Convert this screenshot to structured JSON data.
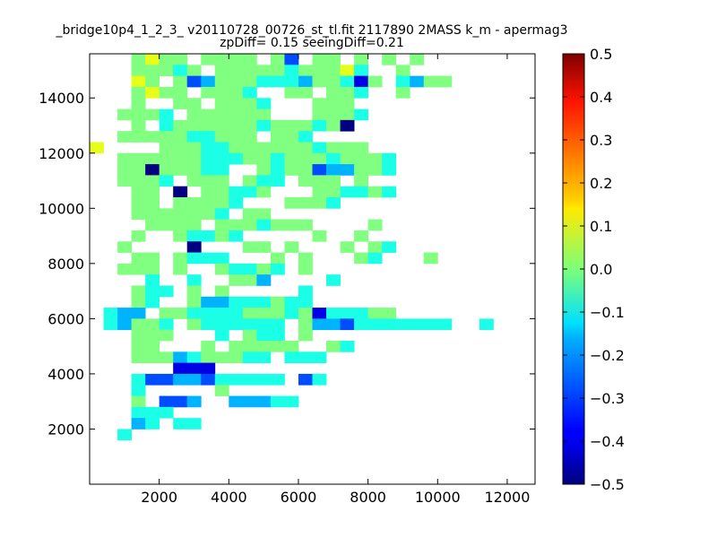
{
  "chart_data": {
    "type": "heatmap",
    "title": "_bridge10p4_1_2_3_ v20110728_00726_st_tl.fit 2117890 2MASS k_m - apermag3",
    "subtitle": "zpDiff= 0.15 seeingDiff=0.21",
    "xlabel": "",
    "ylabel": "",
    "xlim": [
      0,
      12800
    ],
    "ylim": [
      0,
      15600
    ],
    "x_ticks": [
      "2000",
      "4000",
      "6000",
      "8000",
      "10000",
      "12000"
    ],
    "y_ticks": [
      "2000",
      "4000",
      "6000",
      "8000",
      "10000",
      "12000",
      "14000"
    ],
    "colorbar": {
      "colormap": "jet",
      "range": [
        -0.5,
        0.5
      ],
      "ticks": [
        "0.5",
        "0.4",
        "0.3",
        "0.2",
        "0.1",
        "0.0",
        "−0.1",
        "−0.2",
        "−0.3",
        "−0.4",
        "−0.5"
      ]
    },
    "grid": false,
    "bin_size": 400,
    "value_scale": 0.1,
    "value_scale_note": "cell digits are tenths of the colour value",
    "null_symbol": ".",
    "rows_top_to_bottom": [
      "...0100.0000.0-3.00.0.0.0....",
      "...000-10.00000-10001-1..0......",
      "...10.0-3-2000-1-1-1-200-1-40.-1-200..",
      "...0100.000-1..00.00-1..0.....",
      "...0..00.000-1...000....",
      "..000-1.000000...000-1....",
      "...0.-1000000-1000-10-5...",
      "..00000-1-1000.00-1.....",
      "1....000-1-1000000-1000...",
      "..000000-1-1-100-1000-1000-1..",
      "..00-5000-1-1..0-100-3-2-200-1...",
      "..000-1.000.0-1-1.000.0....",
      "...00.-5.00-1-10...00-1-10-1.....",
      "...00.0000-1...000-1....",
      "...000000-1.00....",
      "....0000.000-1000....0....",
      "...0..0-1-10-1.....0..0....",
      "..0....-5...00.0...0.0-1.....",
      "...00.0-1-1-1...0.0...0-1...0....",
      "..000.0..0-1-10-1.0..",
      "....-1..-1..00-2....-1..",
      "...0-1-1.0.0.....-1...",
      "...0-1..0-2-2-1-1-10-1-1....",
      ".-1-2-2.00-1-1-1-1000-10-4-1-1-100....",
      ".-1-200-1.0-1-1-1-1-1-1.0-2-2-3-1-1-1-1-1-1-1..-1....",
      "...000...-1.0-1-1.0.....",
      "...00...0.00000..0-1.....",
      "...000-2-1000-1-1.-1-1-1....",
      "......-4-4-4......",
      "...-1-3-3-2-2-3-1-1-1-1-1.-3-1..",
      "...-1.....0.......",
      "...0.-3-3-2..-2-2-2-1-1......",
      "...-1-1-1.......",
      "...-2-1.-1-1....",
      "..-1..."
    ]
  }
}
